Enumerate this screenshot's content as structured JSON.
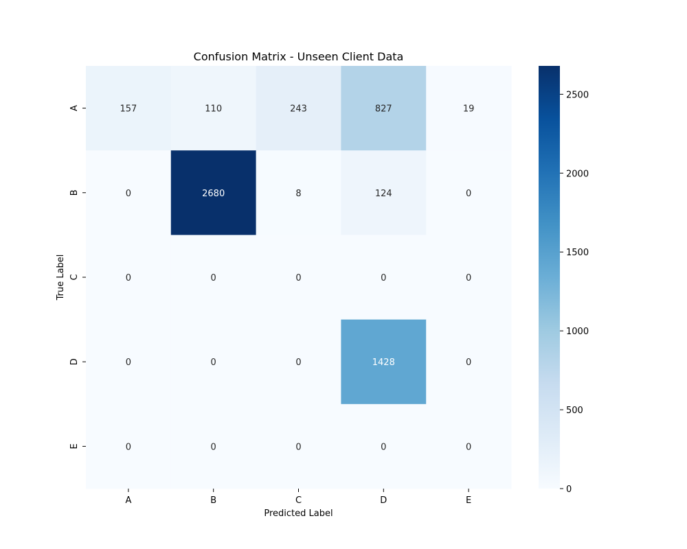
{
  "chart_data": {
    "type": "heatmap",
    "title": "Confusion Matrix - Unseen Client Data",
    "xlabel": "Predicted Label",
    "ylabel": "True Label",
    "x_categories": [
      "A",
      "B",
      "C",
      "D",
      "E"
    ],
    "y_categories": [
      "A",
      "B",
      "C",
      "D",
      "E"
    ],
    "values": [
      [
        157,
        110,
        243,
        827,
        19
      ],
      [
        0,
        2680,
        8,
        124,
        0
      ],
      [
        0,
        0,
        0,
        0,
        0
      ],
      [
        0,
        0,
        0,
        1428,
        0
      ],
      [
        0,
        0,
        0,
        0,
        0
      ]
    ],
    "colormap": "Blues",
    "colorbar": {
      "range": [
        0,
        2680
      ],
      "ticks": [
        0,
        500,
        1000,
        1500,
        2000,
        2500
      ]
    }
  }
}
